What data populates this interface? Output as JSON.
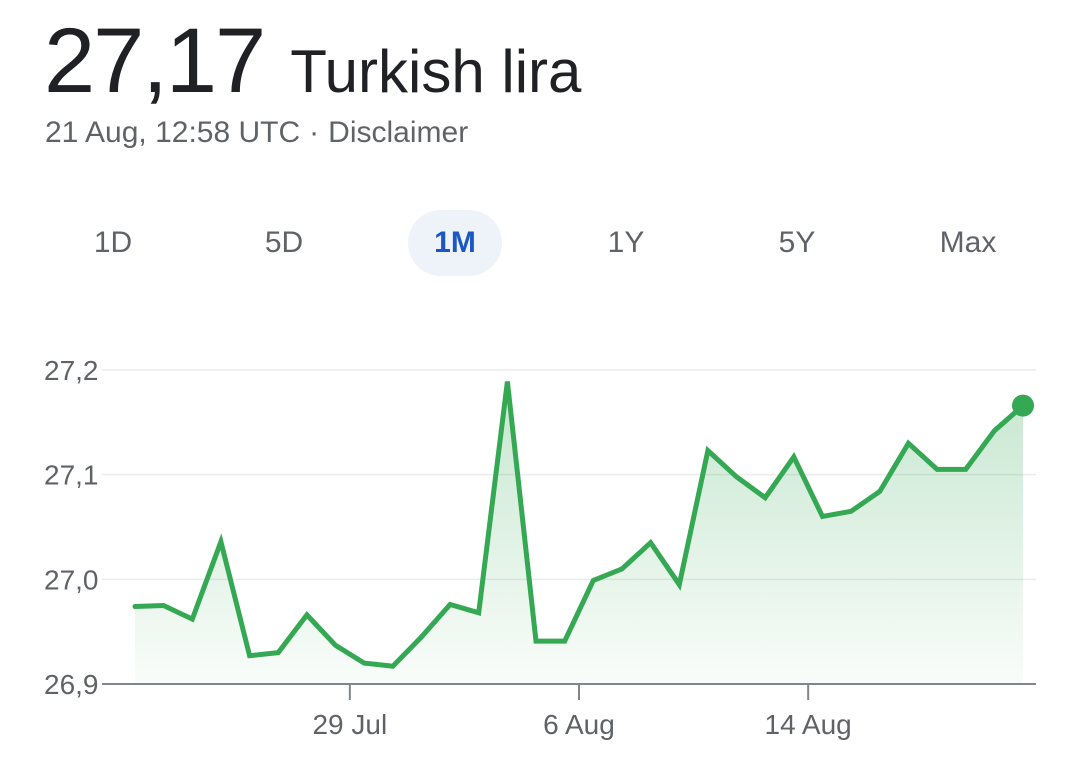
{
  "header": {
    "price": "27,17",
    "currency_name": "Turkish lira",
    "timestamp": "21 Aug, 12:58 UTC",
    "separator": "·",
    "disclaimer": "Disclaimer"
  },
  "ranges": {
    "items": [
      "1D",
      "5D",
      "1M",
      "1Y",
      "5Y",
      "Max"
    ],
    "selected": "1M"
  },
  "colors": {
    "line": "#34a853",
    "accent_tab": "#1a56c5",
    "tab_bg": "#eef3fa",
    "grid": "#ececec",
    "axis": "#80868b"
  },
  "chart_data": {
    "type": "area",
    "title": "",
    "xlabel": "",
    "ylabel": "",
    "ylim": [
      26.9,
      27.2
    ],
    "y_ticks": [
      "27,2",
      "27,1",
      "27,0",
      "26,9"
    ],
    "y_tick_values": [
      27.2,
      27.1,
      27.0,
      26.9
    ],
    "x_ticks": [
      {
        "label": "29 Jul",
        "index": 7.5
      },
      {
        "label": "6 Aug",
        "index": 15.5
      },
      {
        "label": "14 Aug",
        "index": 23.5
      }
    ],
    "grid": true,
    "series": [
      {
        "values": [
          26.974,
          26.975,
          26.962,
          27.036,
          26.927,
          26.93,
          26.966,
          26.937,
          26.92,
          26.917,
          26.945,
          26.976,
          26.968,
          27.189,
          26.941,
          26.941,
          26.999,
          27.01,
          27.035,
          26.995,
          27.123,
          27.098,
          27.078,
          27.117,
          27.06,
          27.065,
          27.084,
          27.13,
          27.105,
          27.105,
          27.142,
          27.166
        ]
      }
    ]
  }
}
